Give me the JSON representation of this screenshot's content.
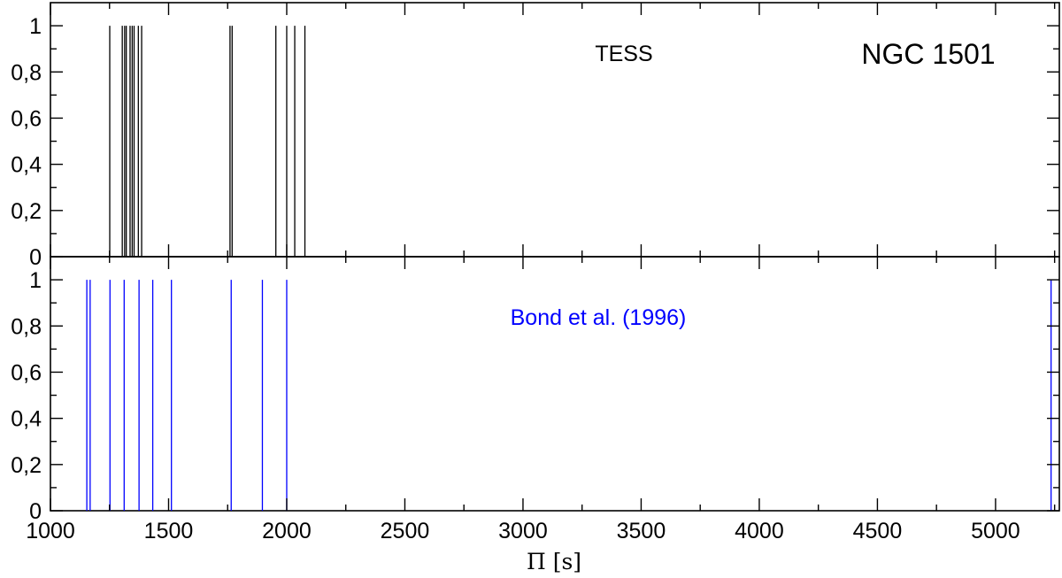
{
  "chart_data": [
    {
      "type": "bar",
      "panel": "top",
      "annotations": [
        "TESS",
        "NGC 1501"
      ],
      "xlabel": "",
      "ylabel": "",
      "xlim": [
        1000,
        5270
      ],
      "ylim": [
        0,
        1.1
      ],
      "y_ticks": [
        "0",
        "0,2",
        "0,4",
        "0,6",
        "0,8",
        "1"
      ],
      "color": "#000000",
      "series": [
        {
          "x": [
            1251,
            1304,
            1314,
            1321,
            1337,
            1346,
            1354,
            1372,
            1386,
            1760,
            1769,
            1954,
            2000,
            2034,
            2077
          ],
          "values": [
            1,
            1,
            1,
            1,
            1,
            1,
            1,
            1,
            1,
            1,
            1,
            1,
            1,
            1,
            1
          ]
        }
      ]
    },
    {
      "type": "bar",
      "panel": "bottom",
      "annotations": [
        "Bond et al. (1996)"
      ],
      "xlabel": "Π [s]",
      "ylabel": "",
      "xlim": [
        1000,
        5270
      ],
      "ylim": [
        0,
        1.1
      ],
      "x_ticks": [
        "1000",
        "1500",
        "2000",
        "2500",
        "3000",
        "3500",
        "4000",
        "4500",
        "5000"
      ],
      "y_ticks": [
        "0",
        "0,2",
        "0,4",
        "0,6",
        "0,8",
        "1"
      ],
      "color": "#0000ff",
      "series": [
        {
          "x": [
            1154,
            1168,
            1252,
            1312,
            1375,
            1433,
            1512,
            1765,
            1897,
            2000,
            5235
          ],
          "values": [
            1,
            1,
            1,
            1,
            1,
            1,
            1,
            1,
            1,
            1,
            1
          ]
        }
      ]
    }
  ]
}
